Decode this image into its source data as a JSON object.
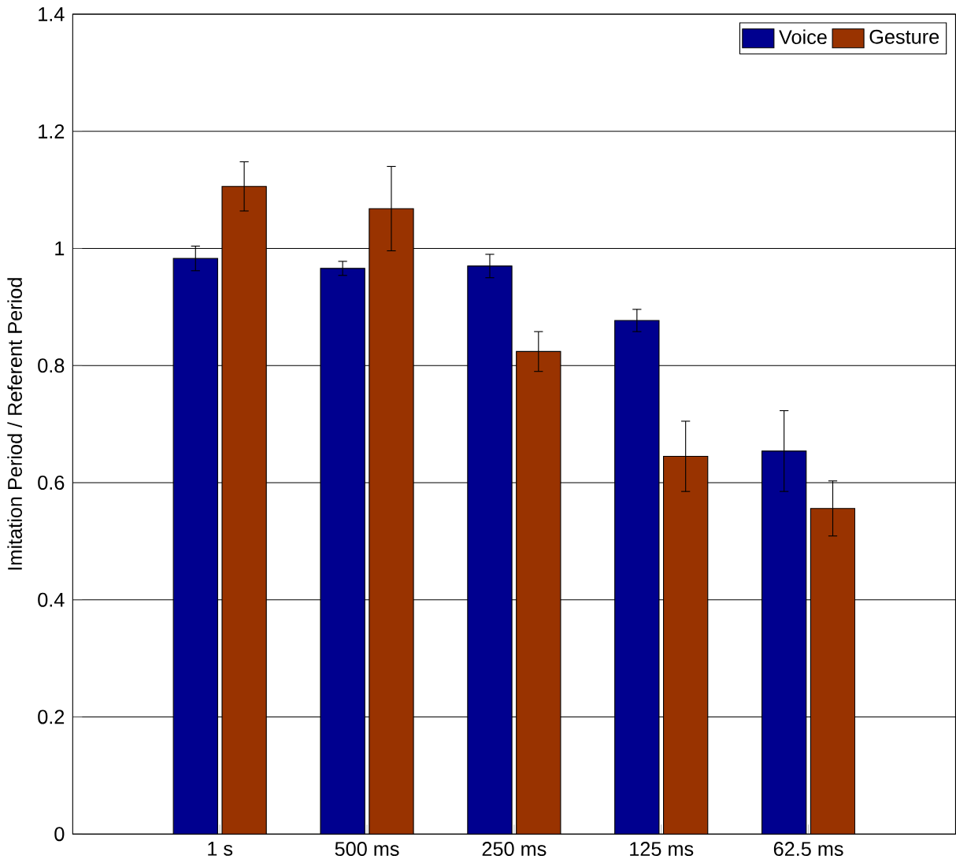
{
  "chart_data": {
    "type": "bar",
    "ylabel": "Imitation Period / Referent Period",
    "categories": [
      "1 s",
      "500 ms",
      "250 ms",
      "125 ms",
      "62.5 ms"
    ],
    "series": [
      {
        "name": "Voice",
        "color": "#00008f",
        "values": [
          0.983,
          0.966,
          0.97,
          0.877,
          0.654
        ],
        "errors": [
          0.021,
          0.012,
          0.02,
          0.019,
          0.069
        ]
      },
      {
        "name": "Gesture",
        "color": "#993300",
        "values": [
          1.106,
          1.068,
          0.824,
          0.645,
          0.556
        ],
        "errors": [
          0.042,
          0.072,
          0.034,
          0.06,
          0.047
        ]
      }
    ],
    "ylim": [
      0,
      1.4
    ],
    "yticks": [
      0,
      0.2,
      0.4,
      0.6,
      0.8,
      1,
      1.2,
      1.4
    ],
    "grid": "y",
    "legend": "top right"
  }
}
